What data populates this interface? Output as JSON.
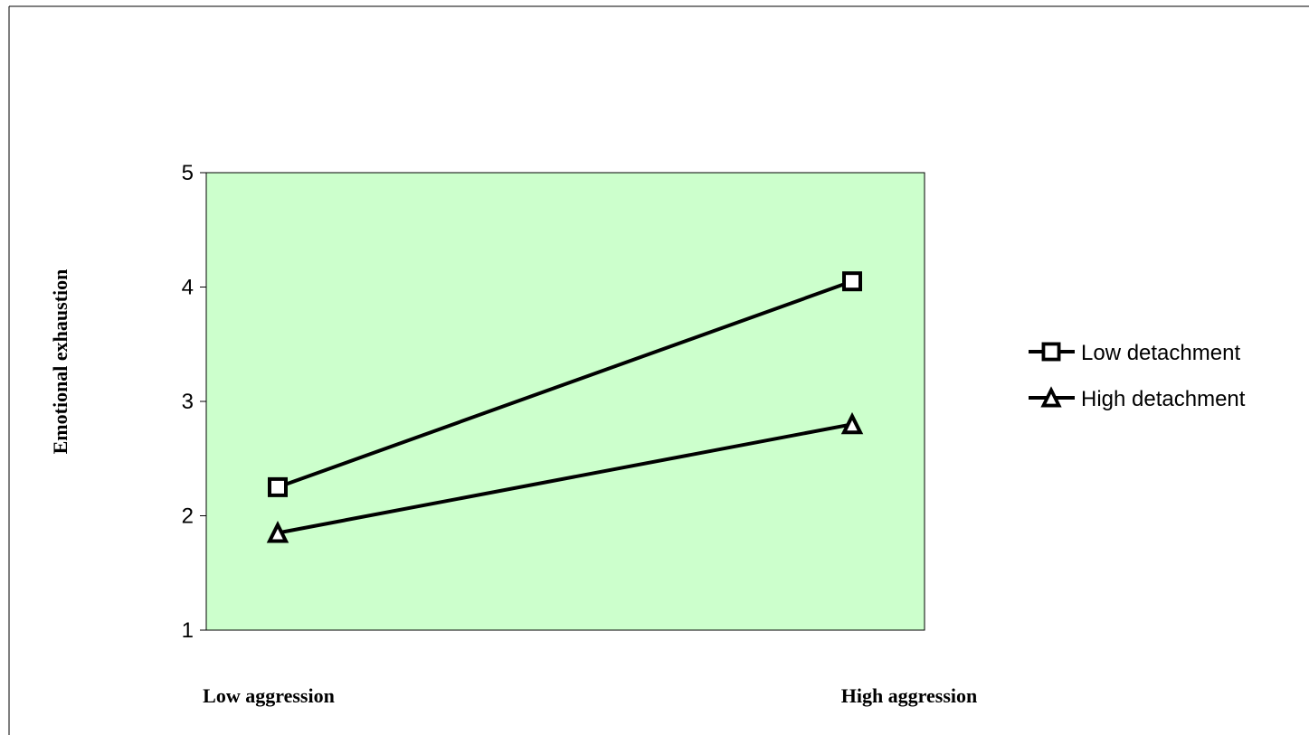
{
  "chart_data": {
    "type": "line",
    "title": "",
    "xlabel": "",
    "ylabel": "Emotional exhaustion",
    "categories": [
      "Low aggression",
      "High aggression"
    ],
    "ylim": [
      1,
      5
    ],
    "yticks": [
      "1",
      "2",
      "3",
      "4",
      "5"
    ],
    "grid": false,
    "legend_position": "right",
    "plot_background": "#ccffcc",
    "line_color": "#000000",
    "series": [
      {
        "name": "Low detachment",
        "marker": "square",
        "values": [
          2.25,
          4.05
        ]
      },
      {
        "name": "High detachment",
        "marker": "triangle",
        "values": [
          1.85,
          2.8
        ]
      }
    ]
  }
}
